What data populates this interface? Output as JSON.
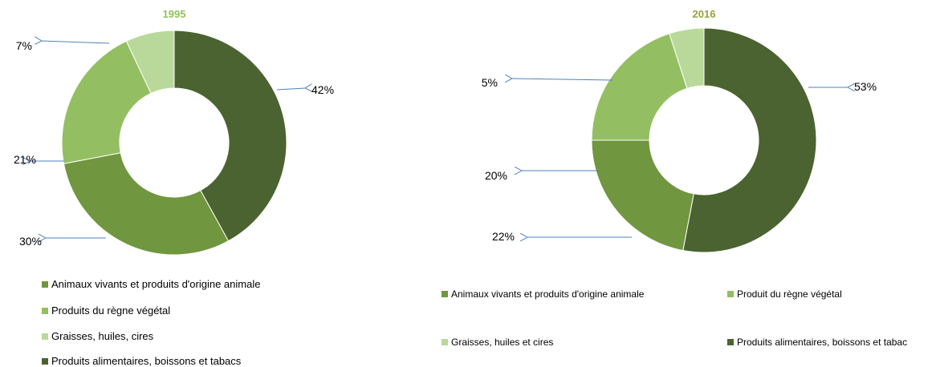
{
  "colors": {
    "animaux": "#70963f",
    "vegetal": "#93bf62",
    "graisses": "#b8d99a",
    "alimentaires": "#4a6330",
    "arrow": "#4f81bd"
  },
  "chart_data": [
    {
      "type": "pie",
      "title": "1995",
      "title_color": "#92c15a",
      "slices": [
        {
          "key": "alimentaires",
          "value": 42,
          "label": "42%"
        },
        {
          "key": "animaux",
          "value": 30,
          "label": "30%"
        },
        {
          "key": "vegetal",
          "value": 21,
          "label": "21%"
        },
        {
          "key": "graisses",
          "value": 7,
          "label": "7%"
        }
      ],
      "legend": [
        {
          "key": "animaux",
          "label": "Animaux vivants et produits d'origine animale"
        },
        {
          "key": "vegetal",
          "label": "Produits du règne végétal"
        },
        {
          "key": "graisses",
          "label": "Graisses, huiles, cires"
        },
        {
          "key": "alimentaires",
          "label": "Produits alimentaires, boissons et tabacs"
        }
      ]
    },
    {
      "type": "pie",
      "title": "2016",
      "title_color": "#93a33a",
      "slices": [
        {
          "key": "alimentaires",
          "value": 53,
          "label": "53%"
        },
        {
          "key": "animaux",
          "value": 22,
          "label": "22%"
        },
        {
          "key": "vegetal",
          "value": 20,
          "label": "20%"
        },
        {
          "key": "graisses",
          "value": 5,
          "label": "5%"
        }
      ],
      "legend": [
        {
          "key": "animaux",
          "label": "Animaux vivants et produits d'origine animale"
        },
        {
          "key": "vegetal",
          "label": "Produit du règne végétal"
        },
        {
          "key": "graisses",
          "label": "Graisses, huiles et cires"
        },
        {
          "key": "alimentaires",
          "label": "Produits alimentaires, boissons et tabac"
        }
      ]
    }
  ]
}
